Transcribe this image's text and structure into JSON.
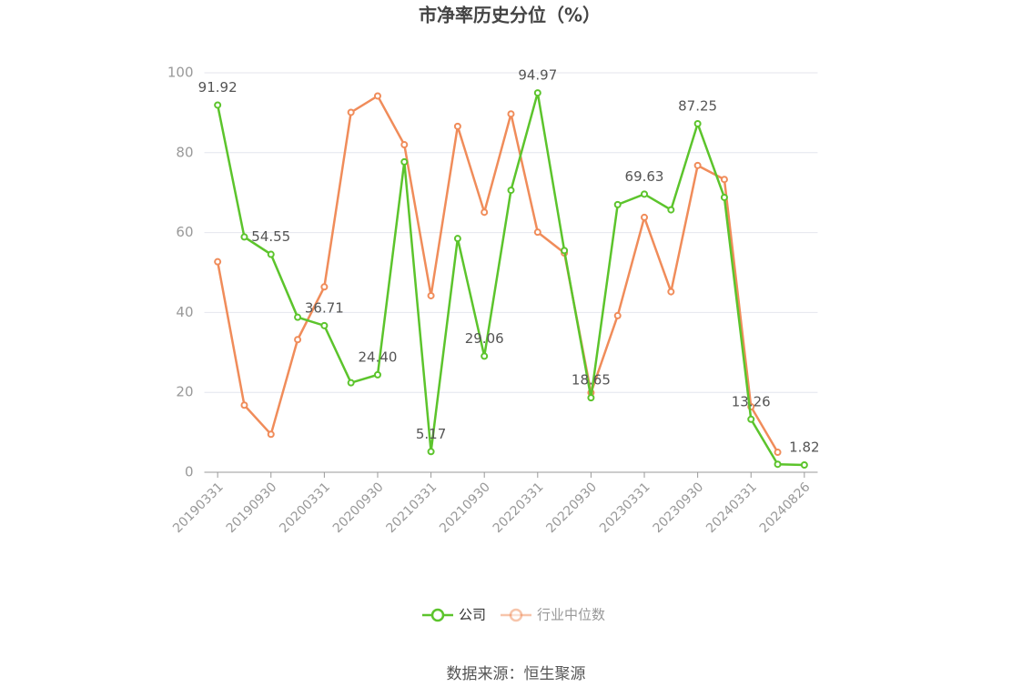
{
  "chart_data": {
    "type": "line",
    "title": "市净率历史分位（%）",
    "categories": [
      "20190331",
      null,
      "20190930",
      null,
      "20200331",
      null,
      "20200930",
      null,
      "20210331",
      null,
      "20210930",
      null,
      "20220331",
      null,
      "20220930",
      null,
      "20230331",
      null,
      "20230930",
      null,
      "20240331",
      null,
      "20240826"
    ],
    "series": [
      {
        "name": "公司",
        "color": "#5cc42c",
        "values": [
          91.92,
          58.9,
          54.55,
          38.8,
          36.71,
          22.4,
          24.4,
          77.7,
          5.17,
          58.5,
          29.06,
          70.6,
          94.97,
          55.5,
          18.65,
          67.0,
          69.63,
          65.7,
          87.25,
          68.8,
          13.26,
          2.0,
          1.82
        ],
        "value_labels": [
          "91.92",
          null,
          "54.55",
          null,
          "36.71",
          null,
          "24.40",
          null,
          "5.17",
          null,
          "29.06",
          null,
          "94.97",
          null,
          "18.65",
          null,
          "69.63",
          null,
          "87.25",
          null,
          "13.26",
          null,
          "1.82"
        ]
      },
      {
        "name": "行业中位数",
        "color": "#f08c5a",
        "values": [
          52.7,
          16.8,
          9.5,
          33.2,
          46.4,
          90.1,
          94.2,
          82.0,
          44.2,
          86.6,
          65.1,
          89.7,
          60.1,
          54.9,
          19.9,
          39.2,
          63.8,
          45.2,
          76.8,
          73.3,
          16.4,
          5.0,
          null
        ]
      }
    ],
    "ylim": [
      0,
      100
    ],
    "yticks": [
      0,
      20,
      40,
      60,
      80,
      100
    ],
    "grid": true,
    "source": "数据来源：恒生聚源"
  }
}
